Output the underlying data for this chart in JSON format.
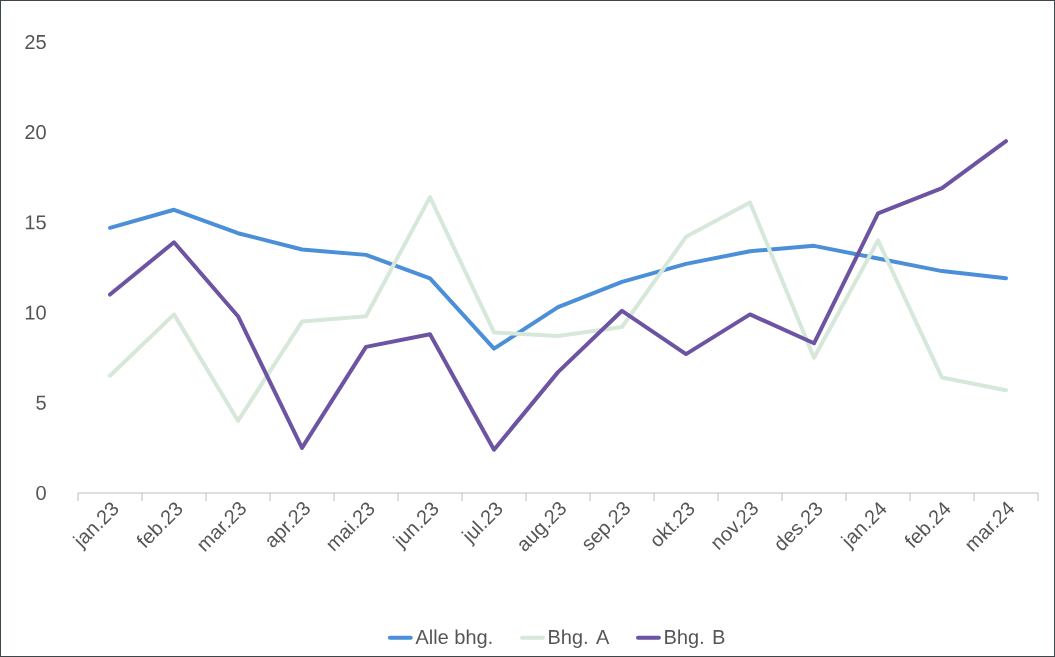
{
  "chart_data": {
    "type": "line",
    "categories": [
      "jan.23",
      "feb.23",
      "mar.23",
      "apr.23",
      "mai.23",
      "jun.23",
      "jul.23",
      "aug.23",
      "sep.23",
      "okt.23",
      "nov.23",
      "des.23",
      "jan.24",
      "feb.24",
      "mar.24"
    ],
    "series": [
      {
        "name": "Alle bhg.",
        "color": "#4a8fd8",
        "values": [
          14.7,
          15.7,
          14.4,
          13.5,
          13.2,
          11.9,
          8.0,
          10.3,
          11.7,
          12.7,
          13.4,
          13.7,
          13.0,
          12.3,
          11.9
        ]
      },
      {
        "name": "Bhg. A",
        "color": "#d5e8d9",
        "values": [
          6.5,
          9.9,
          4.0,
          9.5,
          9.8,
          16.4,
          8.9,
          8.7,
          9.2,
          14.2,
          16.1,
          7.5,
          14.0,
          6.4,
          5.7
        ]
      },
      {
        "name": "Bhg. B",
        "color": "#6c54a3",
        "values": [
          11.0,
          13.9,
          9.8,
          2.5,
          8.1,
          8.8,
          2.4,
          6.7,
          10.1,
          7.7,
          9.9,
          8.3,
          15.5,
          16.9,
          19.5
        ]
      }
    ],
    "ylim": [
      0,
      25
    ],
    "yticks": [
      0,
      5,
      10,
      15,
      20,
      25
    ],
    "legend": "bottom",
    "marker": "none"
  }
}
